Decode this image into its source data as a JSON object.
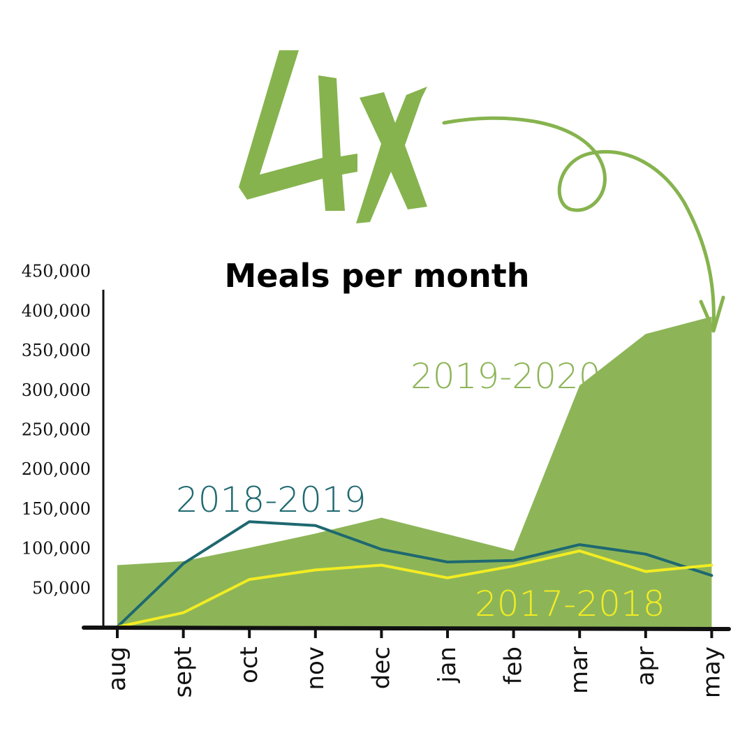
{
  "headline": "4x",
  "title": "Meals per month",
  "colors": {
    "area_2019_2020": "#8db558",
    "line_2018_2019": "#1e6870",
    "line_2017_2018": "#f3ec22",
    "axis": "#111111",
    "arrow": "#86b34e"
  },
  "chart_data": {
    "type": "area",
    "categories": [
      "aug",
      "sept",
      "oct",
      "nov",
      "dec",
      "jan",
      "feb",
      "mar",
      "apr",
      "may"
    ],
    "ylim": [
      0,
      450000
    ],
    "yticks": [
      50000,
      100000,
      150000,
      200000,
      250000,
      300000,
      350000,
      400000,
      450000
    ],
    "ytick_labels": [
      "50,000",
      "100,000",
      "150,000",
      "200,000",
      "250,000",
      "300,000",
      "350,000",
      "400,000",
      "450,000"
    ],
    "series": [
      {
        "name": "2019-2020",
        "type": "area",
        "values": [
          78000,
          83000,
          100000,
          118000,
          138000,
          117000,
          96000,
          305000,
          370000,
          392000
        ]
      },
      {
        "name": "2018-2019",
        "type": "line",
        "values": [
          0,
          80000,
          133000,
          128000,
          98000,
          82000,
          84000,
          104000,
          92000,
          65000
        ]
      },
      {
        "name": "2017-2018",
        "type": "line",
        "values": [
          0,
          18000,
          60000,
          72000,
          78000,
          62000,
          77000,
          96000,
          70000,
          78000
        ]
      }
    ]
  }
}
